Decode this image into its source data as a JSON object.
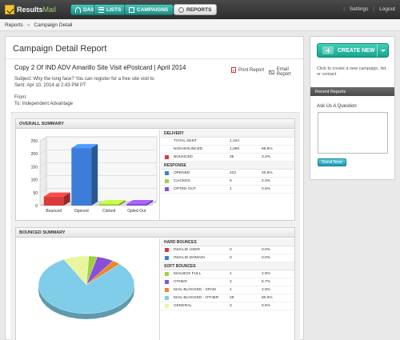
{
  "app": {
    "logo_text": "Results",
    "logo_text_light": "Mail"
  },
  "nav": {
    "items": [
      {
        "label": "DASH",
        "icon": "dashboard-icon"
      },
      {
        "label": "LISTS",
        "icon": "lists-icon"
      },
      {
        "label": "CAMPAIGNS",
        "icon": "campaigns-icon"
      },
      {
        "label": "REPORTS",
        "icon": "reports-icon",
        "active": true
      }
    ],
    "settings": "Settings",
    "logout": "Logout",
    "separator": "|"
  },
  "breadcrumb": {
    "root": "Reports",
    "arrow": "»",
    "current": "Campaign Detail"
  },
  "page": {
    "title": "Campaign Detail Report",
    "campaign_name": "Copy 2 Of IND ADV Amarillo Site Visit ePostcard | April 2014",
    "subject": "Subject: Why the long face? You can register for a free site visit to",
    "sent": "Sent: Apr 10, 2014 at 2:43 PM PT",
    "from": "From:",
    "to": "To: Independent Advantage",
    "print_report": "Print Report",
    "email_report": "Email Report"
  },
  "overall_summary": {
    "title": "OVERALL SUMMARY",
    "groups": [
      {
        "title": "DELIVERY",
        "rows": [
          {
            "label": "TOTAL SENT",
            "count": "1,104",
            "pct": "",
            "color": ""
          },
          {
            "label": "NON-BOUNCED",
            "count": "1,069",
            "pct": "96.8%",
            "color": ""
          },
          {
            "label": "BOUNCED",
            "count": "35",
            "pct": "3.2%",
            "color": "#d93a3a"
          }
        ]
      },
      {
        "title": "RESPONSE",
        "rows": [
          {
            "label": "OPENED",
            "count": "222",
            "pct": "20.8%",
            "color": "#3b7dd8"
          },
          {
            "label": "CLICKED",
            "count": "5",
            "pct": "2.3%",
            "color": "#9fd23e"
          },
          {
            "label": "OPTED OUT",
            "count": "1",
            "pct": "0.5%",
            "color": "#8a4fd8"
          }
        ]
      }
    ]
  },
  "bounced_summary": {
    "title": "BOUNCED SUMMARY",
    "groups": [
      {
        "title": "HARD BOUNCES",
        "rows": [
          {
            "label": "INVALID USER",
            "count": "0",
            "pct": "0.0%",
            "color": "#d93a3a"
          },
          {
            "label": "INVALID DOMAIN",
            "count": "0",
            "pct": "0.0%",
            "color": "#3b7dd8"
          }
        ]
      },
      {
        "title": "SOFT BOUNCES",
        "rows": [
          {
            "label": "MAILBOX FULL",
            "count": "1",
            "pct": "2.9%",
            "color": "#9fd23e"
          },
          {
            "label": "OTHER",
            "count": "2",
            "pct": "5.7%",
            "color": "#8a4fd8"
          },
          {
            "label": "MAIL BLOCKED - SPAM",
            "count": "1",
            "pct": "2.9%",
            "color": "#e8892a"
          },
          {
            "label": "MAIL BLOCKED - OTHER",
            "count": "28",
            "pct": "80.0%",
            "color": "#7fcde8"
          },
          {
            "label": "GENERAL",
            "count": "3",
            "pct": "8.6%",
            "color": "#e9f5a0"
          }
        ]
      }
    ]
  },
  "chart_data": [
    {
      "type": "bar",
      "categories": [
        "Bounced",
        "Opened",
        "Clicked",
        "Opted Out"
      ],
      "values": [
        35,
        222,
        5,
        1
      ],
      "colors": [
        "#d93a3a",
        "#3b7dd8",
        "#9fd23e",
        "#8a4fd8"
      ],
      "ylim": [
        0,
        250
      ],
      "yticks": [
        0,
        50,
        100,
        150,
        200,
        250
      ],
      "grid": true
    },
    {
      "type": "pie",
      "categories": [
        "Mailbox Full",
        "Other",
        "Mail Blocked - Spam",
        "Mail Blocked - Other",
        "General"
      ],
      "values": [
        1,
        2,
        1,
        28,
        3
      ],
      "colors": [
        "#9fd23e",
        "#8a4fd8",
        "#e8892a",
        "#7fcde8",
        "#e9f5a0"
      ]
    }
  ],
  "sidebar": {
    "create_label": "CREATE NEW",
    "create_help": "Click to create a new campaign, list, or contact",
    "recent_reports": "Recent Reports",
    "ask_label": "Ask Us A Question",
    "ask_placeholder": "",
    "send_label": "Send Now"
  }
}
